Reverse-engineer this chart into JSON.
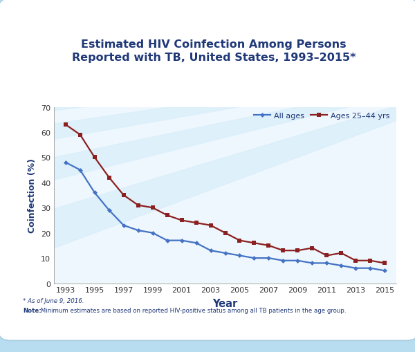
{
  "title_line1": "Estimated HIV Coinfection Among Persons",
  "title_line2": "Reported with TB, United States, 1993–2015*",
  "xlabel": "Year",
  "ylabel": "Coinfection (%)",
  "years": [
    1993,
    1994,
    1995,
    1996,
    1997,
    1998,
    1999,
    2000,
    2001,
    2002,
    2003,
    2004,
    2005,
    2006,
    2007,
    2008,
    2009,
    2010,
    2011,
    2012,
    2013,
    2014,
    2015
  ],
  "all_ages": [
    48,
    45,
    36,
    29,
    23,
    21,
    20,
    17,
    17,
    16,
    13,
    12,
    11,
    10,
    10,
    9,
    9,
    8,
    8,
    7,
    6,
    6,
    5
  ],
  "ages_25_44": [
    63,
    59,
    50,
    42,
    35,
    31,
    30,
    27,
    25,
    24,
    23,
    20,
    17,
    16,
    15,
    13,
    13,
    14,
    11,
    12,
    9,
    9,
    8
  ],
  "all_ages_color": "#4472C4",
  "ages_25_44_color": "#8B2020",
  "ylim": [
    0,
    70
  ],
  "yticks": [
    0,
    10,
    20,
    30,
    40,
    50,
    60,
    70
  ],
  "bg_outer": "#B8DCF0",
  "bg_card": "#FFFFFF",
  "title_color": "#1F3878",
  "axis_label_color": "#1F3878",
  "tick_color": "#333333",
  "footnote1": "* As of June 9, 2016.",
  "footnote2_bold": "Note:",
  "footnote2_rest": " Minimum estimates are based on reported HIV-positive status among all TB patients in the age group.",
  "legend_all_ages": "All ages",
  "legend_25_44": "Ages 25–44 yrs",
  "ray_color": "#D0EAFA",
  "card_edge_color": "#A8CCE0"
}
